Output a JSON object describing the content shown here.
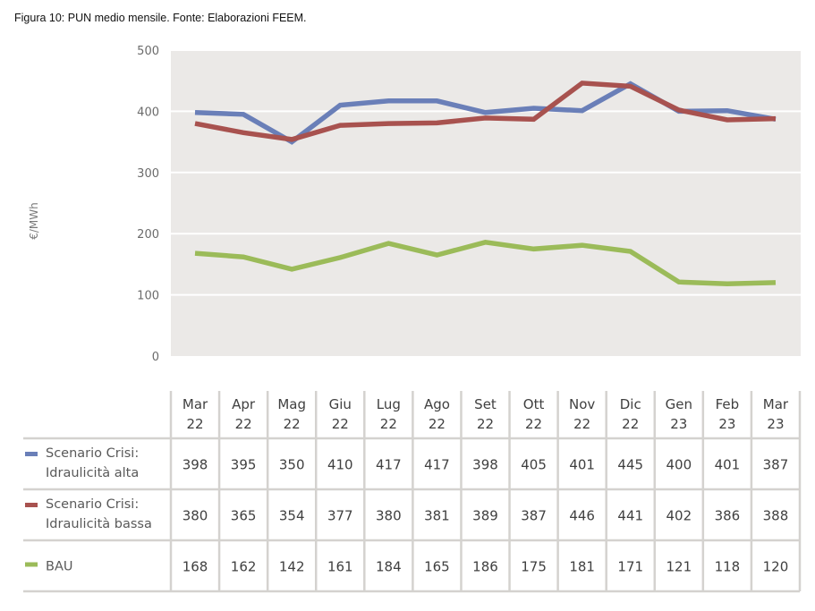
{
  "caption": "Figura 10: PUN medio mensile. Fonte: Elaborazioni FEEM.",
  "chart_data": {
    "type": "line",
    "title": "",
    "xlabel": "",
    "ylabel": "€/MWh",
    "ylim": [
      0,
      500
    ],
    "yticks": [
      0,
      100,
      200,
      300,
      400,
      500
    ],
    "grid": true,
    "legend_placement": "bottom-table",
    "categories": [
      [
        "Mar",
        "22"
      ],
      [
        "Apr",
        "22"
      ],
      [
        "Mag",
        "22"
      ],
      [
        "Giu",
        "22"
      ],
      [
        "Lug",
        "22"
      ],
      [
        "Ago",
        "22"
      ],
      [
        "Set",
        "22"
      ],
      [
        "Ott",
        "22"
      ],
      [
        "Nov",
        "22"
      ],
      [
        "Dic",
        "22"
      ],
      [
        "Gen",
        "23"
      ],
      [
        "Feb",
        "23"
      ],
      [
        "Mar",
        "23"
      ]
    ],
    "series": [
      {
        "name": [
          "Scenario Crisi:",
          "Idraulicità alta"
        ],
        "color": "#6a7fb8",
        "values": [
          398,
          395,
          350,
          410,
          417,
          417,
          398,
          405,
          401,
          445,
          400,
          401,
          387
        ]
      },
      {
        "name": [
          "Scenario Crisi:",
          "Idraulicità bassa"
        ],
        "color": "#a8524f",
        "values": [
          380,
          365,
          354,
          377,
          380,
          381,
          389,
          387,
          446,
          441,
          402,
          386,
          388
        ]
      },
      {
        "name": [
          "BAU"
        ],
        "color": "#9bbb59",
        "values": [
          168,
          162,
          142,
          161,
          184,
          165,
          186,
          175,
          181,
          171,
          121,
          118,
          120
        ]
      }
    ],
    "colors": {
      "plot_background": "#ebe9e7",
      "gridline": "#ffffff",
      "table_border": "#d4d2cf"
    }
  }
}
